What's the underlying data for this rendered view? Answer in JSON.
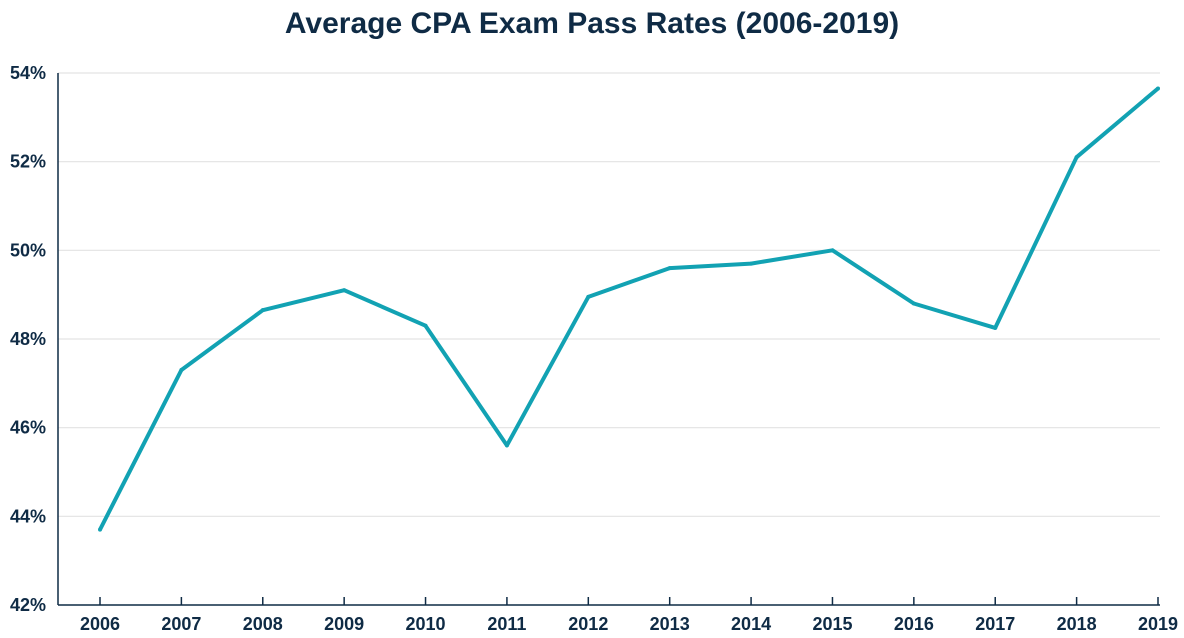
{
  "chart_data": {
    "type": "line",
    "title": "Average CPA Exam Pass Rates (2006-2019)",
    "xlabel": "",
    "ylabel": "",
    "x": [
      "2006",
      "2007",
      "2008",
      "2009",
      "2010",
      "2011",
      "2012",
      "2013",
      "2014",
      "2015",
      "2016",
      "2017",
      "2018",
      "2019"
    ],
    "series": [
      {
        "values": [
          43.7,
          47.3,
          48.65,
          49.1,
          48.3,
          45.6,
          48.95,
          49.6,
          49.7,
          50.0,
          48.8,
          48.25,
          52.1,
          53.65
        ]
      }
    ],
    "ylim": [
      42,
      54
    ],
    "yticks": [
      42,
      44,
      46,
      48,
      50,
      52,
      54
    ],
    "ytick_labels": [
      "42%",
      "44%",
      "46%",
      "48%",
      "50%",
      "52%",
      "54%"
    ],
    "grid": true,
    "legend": "none",
    "colors": {
      "line": "#12a2b3",
      "grid": "#e3e3e3",
      "axis": "#0f2b45",
      "text": "#0f2b45"
    }
  }
}
